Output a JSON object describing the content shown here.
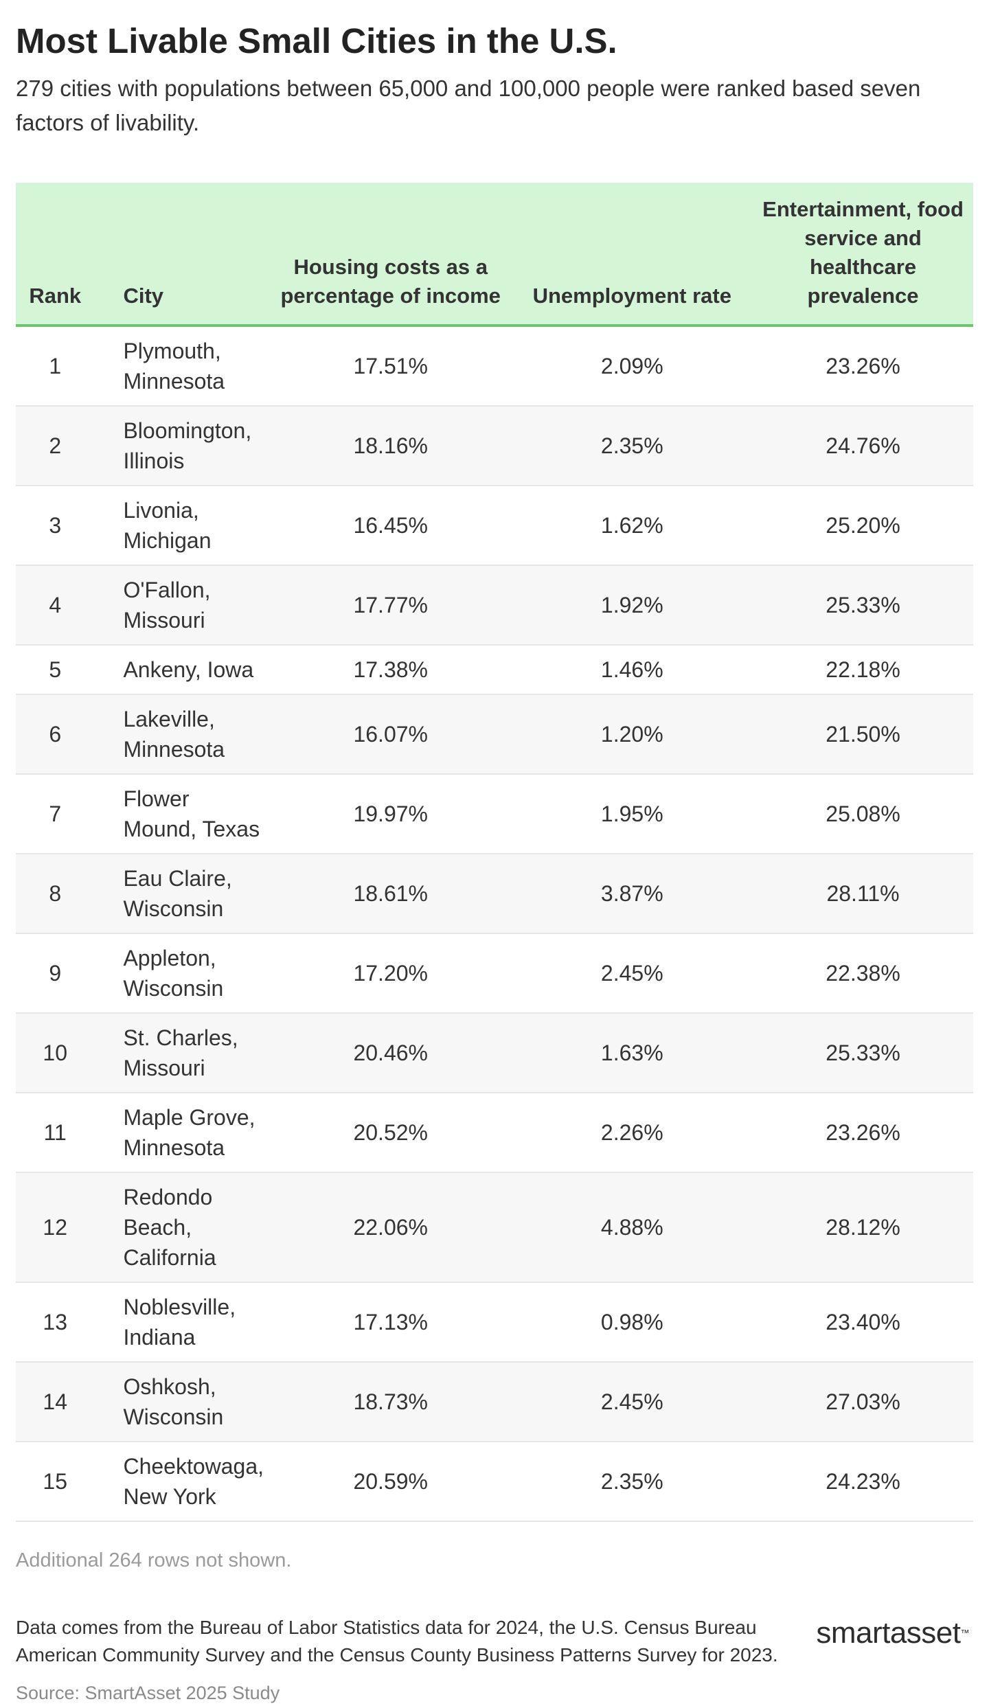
{
  "title": "Most Livable Small Cities in the U.S.",
  "subtitle": "279 cities with populations between 65,000 and 100,000 people were ranked based seven factors of livability.",
  "chart_data": {
    "type": "table",
    "columns": [
      "Rank",
      "City",
      "Housing costs as a percentage of income",
      "Unemployment rate",
      "Entertainment, food service and healthcare prevalence"
    ],
    "rows": [
      {
        "rank": "1",
        "city": "Plymouth, Minnesota",
        "housing": "17.51%",
        "unemployment": "2.09%",
        "entertainment": "23.26%"
      },
      {
        "rank": "2",
        "city": "Bloomington, Illinois",
        "housing": "18.16%",
        "unemployment": "2.35%",
        "entertainment": "24.76%"
      },
      {
        "rank": "3",
        "city": "Livonia, Michigan",
        "housing": "16.45%",
        "unemployment": "1.62%",
        "entertainment": "25.20%"
      },
      {
        "rank": "4",
        "city": "O'Fallon, Missouri",
        "housing": "17.77%",
        "unemployment": "1.92%",
        "entertainment": "25.33%"
      },
      {
        "rank": "5",
        "city": "Ankeny, Iowa",
        "housing": "17.38%",
        "unemployment": "1.46%",
        "entertainment": "22.18%"
      },
      {
        "rank": "6",
        "city": "Lakeville, Minnesota",
        "housing": "16.07%",
        "unemployment": "1.20%",
        "entertainment": "21.50%"
      },
      {
        "rank": "7",
        "city": "Flower Mound, Texas",
        "housing": "19.97%",
        "unemployment": "1.95%",
        "entertainment": "25.08%"
      },
      {
        "rank": "8",
        "city": "Eau Claire, Wisconsin",
        "housing": "18.61%",
        "unemployment": "3.87%",
        "entertainment": "28.11%"
      },
      {
        "rank": "9",
        "city": "Appleton, Wisconsin",
        "housing": "17.20%",
        "unemployment": "2.45%",
        "entertainment": "22.38%"
      },
      {
        "rank": "10",
        "city": "St. Charles, Missouri",
        "housing": "20.46%",
        "unemployment": "1.63%",
        "entertainment": "25.33%"
      },
      {
        "rank": "11",
        "city": "Maple Grove, Minnesota",
        "housing": "20.52%",
        "unemployment": "2.26%",
        "entertainment": "23.26%"
      },
      {
        "rank": "12",
        "city": "Redondo Beach, California",
        "housing": "22.06%",
        "unemployment": "4.88%",
        "entertainment": "28.12%"
      },
      {
        "rank": "13",
        "city": "Noblesville, Indiana",
        "housing": "17.13%",
        "unemployment": "0.98%",
        "entertainment": "23.40%"
      },
      {
        "rank": "14",
        "city": "Oshkosh, Wisconsin",
        "housing": "18.73%",
        "unemployment": "2.45%",
        "entertainment": "27.03%"
      },
      {
        "rank": "15",
        "city": "Cheektowaga, New York",
        "housing": "20.59%",
        "unemployment": "2.35%",
        "entertainment": "24.23%"
      }
    ]
  },
  "note": "Additional 264 rows not shown.",
  "footer": {
    "text": "Data comes from the Bureau of Labor Statistics data for 2024, the U.S. Census Bureau American Community Survey and the Census County Business Patterns Survey for 2023.",
    "source": "Source: SmartAsset 2025 Study"
  },
  "logo": {
    "part1": "smart",
    "part2": "asset",
    "tm": "™"
  }
}
